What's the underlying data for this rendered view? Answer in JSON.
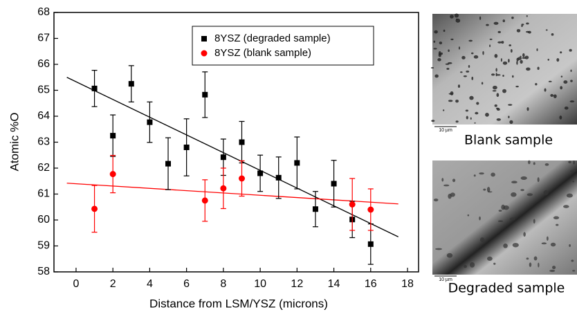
{
  "chart_data": {
    "type": "scatter",
    "x_label": "Distance from LSM/YSZ (microns)",
    "y_label": "Atomic %O",
    "xlim": [
      -1.2,
      18.6
    ],
    "ylim": [
      58,
      68
    ],
    "xticks": [
      0,
      2,
      4,
      6,
      8,
      10,
      12,
      14,
      16,
      18
    ],
    "yticks": [
      58,
      59,
      60,
      61,
      62,
      63,
      64,
      65,
      66,
      67,
      68
    ],
    "legend": "top-right",
    "series": [
      {
        "name": "8YSZ (degraded sample)",
        "color": "#000000",
        "marker": "square",
        "x": [
          1,
          2,
          3,
          4,
          5,
          6,
          7,
          8,
          9,
          10,
          11,
          12,
          13,
          14,
          15,
          16
        ],
        "values": [
          65.07,
          63.25,
          65.25,
          63.77,
          62.17,
          62.8,
          64.83,
          62.42,
          63.0,
          61.8,
          61.63,
          62.2,
          60.42,
          61.4,
          60.02,
          59.07
        ],
        "errors": [
          0.7,
          0.8,
          0.7,
          0.78,
          1.0,
          1.1,
          0.88,
          0.7,
          0.8,
          0.7,
          0.8,
          1.0,
          0.68,
          0.9,
          0.7,
          0.78
        ]
      },
      {
        "name": "8YSZ (blank sample)",
        "color": "#ff0000",
        "marker": "circle",
        "x": [
          1,
          2,
          7,
          8,
          9,
          15,
          16
        ],
        "values": [
          60.43,
          61.77,
          60.75,
          61.22,
          61.6,
          60.6,
          60.4
        ],
        "errors": [
          0.9,
          0.72,
          0.8,
          0.78,
          0.68,
          1.0,
          0.8
        ]
      }
    ],
    "trend_lines": [
      {
        "color": "#000000",
        "x": [
          -0.5,
          17.5
        ],
        "values": [
          65.5,
          59.35
        ]
      },
      {
        "color": "#ff0000",
        "x": [
          -0.5,
          17.5
        ],
        "values": [
          61.42,
          60.62
        ]
      }
    ]
  },
  "images": [
    {
      "caption": "Blank sample",
      "scale_label": "10 µm"
    },
    {
      "caption": "Degraded sample",
      "scale_label": "10 µm"
    }
  ]
}
